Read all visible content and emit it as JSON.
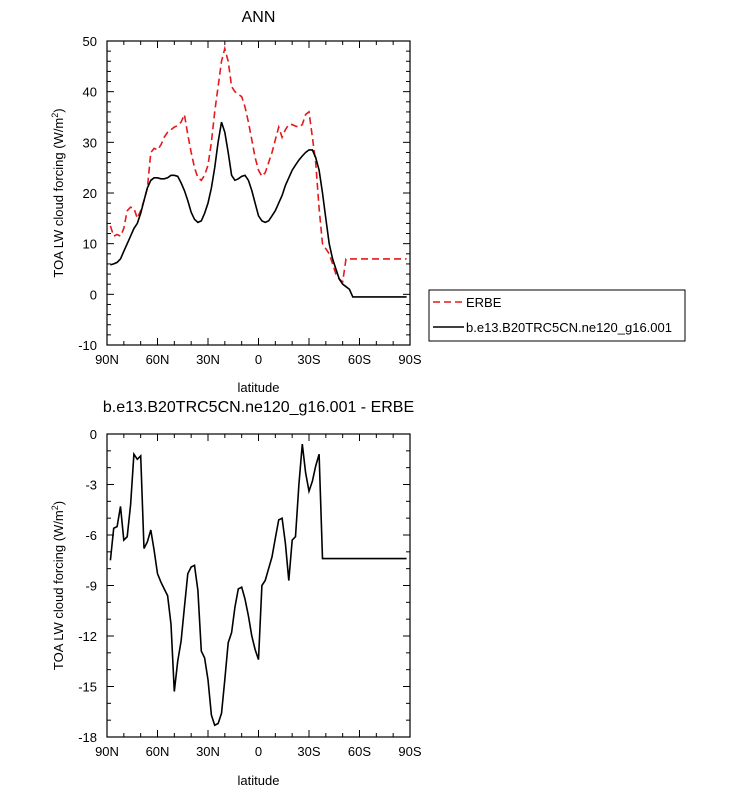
{
  "chart_data": [
    {
      "type": "line",
      "title": "ANN",
      "xlabel": "latitude",
      "ylabel_main": "TOA LW cloud forcing (W/m",
      "ylabel_sup": "2",
      "ylabel_tail": ")",
      "xlim": [
        90,
        -90
      ],
      "ylim": [
        -10,
        50
      ],
      "x_ticks": [
        90,
        60,
        30,
        0,
        -30,
        -60,
        -90
      ],
      "x_tick_labels": [
        "90N",
        "60N",
        "30N",
        "0",
        "30S",
        "60S",
        "90S"
      ],
      "y_ticks": [
        -10,
        0,
        10,
        20,
        30,
        40,
        50
      ],
      "y_tick_labels": [
        "-10",
        "0",
        "10",
        "20",
        "30",
        "40",
        "50"
      ],
      "legend": {
        "position": "right",
        "colors": [
          "#e41a1c",
          "#000000"
        ]
      },
      "series": [
        {
          "name": "ERBE",
          "color": "#e41a1c",
          "dash": "dashed",
          "x": [
            88,
            86,
            84,
            82,
            80,
            78,
            76,
            74,
            72,
            70,
            68,
            66,
            64,
            62,
            60,
            58,
            56,
            54,
            52,
            50,
            48,
            46,
            44,
            42,
            40,
            38,
            36,
            34,
            32,
            30,
            28,
            26,
            24,
            22,
            20,
            18,
            16,
            14,
            12,
            10,
            8,
            6,
            4,
            2,
            0,
            -2,
            -4,
            -6,
            -8,
            -10,
            -12,
            -14,
            -16,
            -18,
            -20,
            -22,
            -24,
            -26,
            -28,
            -30,
            -32,
            -34,
            -36,
            -38,
            -40,
            -42,
            -44,
            -46,
            -48,
            -50,
            -52,
            -54,
            -56,
            -58,
            -60,
            -62,
            -64,
            -66,
            -68,
            -70,
            -72,
            -74,
            -76,
            -78,
            -80,
            -82,
            -84,
            -86,
            -88
          ],
          "values": [
            13.5,
            11.5,
            11.8,
            11.5,
            13,
            16.5,
            17.2,
            17,
            15,
            16.5,
            18.5,
            21,
            28,
            28.8,
            28.5,
            29.5,
            31,
            32,
            32.5,
            33,
            33.3,
            34,
            35.5,
            31.5,
            28,
            25,
            23,
            22.5,
            23.5,
            25.5,
            30,
            36,
            41,
            46,
            48.5,
            46,
            41,
            40,
            39.5,
            39,
            37,
            34,
            30.5,
            27,
            24.5,
            23.3,
            24,
            26,
            28,
            30.5,
            33,
            31,
            32.5,
            33.5,
            33.5,
            33.2,
            33,
            33.5,
            35.5,
            36,
            31,
            26,
            17,
            10,
            9,
            8,
            6,
            4,
            3,
            2.5,
            7,
            7,
            7,
            7,
            7,
            7,
            7,
            7,
            7,
            7,
            7,
            7,
            7,
            7,
            7,
            7,
            7,
            7,
            7
          ]
        },
        {
          "name": "b.e13.B20TRC5CN.ne120_g16.001",
          "color": "#000000",
          "dash": "solid",
          "x": [
            88,
            86,
            84,
            82,
            80,
            78,
            76,
            74,
            72,
            70,
            68,
            66,
            64,
            62,
            60,
            58,
            56,
            54,
            52,
            50,
            48,
            46,
            44,
            42,
            40,
            38,
            36,
            34,
            32,
            30,
            28,
            26,
            24,
            22,
            20,
            18,
            16,
            14,
            12,
            10,
            8,
            6,
            4,
            2,
            0,
            -2,
            -4,
            -6,
            -8,
            -10,
            -12,
            -14,
            -16,
            -18,
            -20,
            -22,
            -24,
            -26,
            -28,
            -30,
            -32,
            -34,
            -36,
            -38,
            -40,
            -42,
            -44,
            -46,
            -48,
            -50,
            -52,
            -54,
            -56,
            -58,
            -60,
            -62,
            -64,
            -66,
            -68,
            -70,
            -72,
            -74,
            -76,
            -78,
            -80,
            -82,
            -84,
            -86,
            -88
          ],
          "values": [
            5.8,
            6,
            6.3,
            7,
            8.5,
            10,
            11.5,
            13,
            14,
            16,
            18.5,
            21,
            22.5,
            23,
            23,
            22.8,
            22.8,
            23,
            23.5,
            23.5,
            23.3,
            22,
            20.5,
            18.5,
            16.2,
            14.8,
            14.2,
            14.5,
            16,
            18,
            21,
            25,
            30,
            34,
            32,
            28,
            23.5,
            22.5,
            22.8,
            23.3,
            23.5,
            22.5,
            20.5,
            18,
            15.5,
            14.5,
            14.2,
            14.5,
            15.5,
            16.5,
            18,
            19.5,
            21.5,
            23,
            24.5,
            25.5,
            26.5,
            27.3,
            28,
            28.5,
            28.5,
            27,
            24.5,
            20,
            15,
            10,
            7,
            5,
            3,
            2,
            1.5,
            1,
            -0.5,
            -0.5,
            -0.5,
            -0.5,
            -0.5,
            -0.5,
            -0.5,
            -0.5,
            -0.5,
            -0.5,
            -0.5,
            -0.5,
            -0.5,
            -0.5,
            -0.5,
            -0.5,
            -0.5
          ]
        }
      ]
    },
    {
      "type": "line",
      "title": "b.e13.B20TRC5CN.ne120_g16.001 - ERBE",
      "xlabel": "latitude",
      "ylabel_main": "TOA LW cloud forcing (W/m",
      "ylabel_sup": "2",
      "ylabel_tail": ")",
      "xlim": [
        90,
        -90
      ],
      "ylim": [
        -18,
        0
      ],
      "x_ticks": [
        90,
        60,
        30,
        0,
        -30,
        -60,
        -90
      ],
      "x_tick_labels": [
        "90N",
        "60N",
        "30N",
        "0",
        "30S",
        "60S",
        "90S"
      ],
      "y_ticks": [
        -18,
        -15,
        -12,
        -9,
        -6,
        -3,
        0
      ],
      "y_tick_labels": [
        "-18",
        "-15",
        "-12",
        "-9",
        "-6",
        "-3",
        "0"
      ],
      "series": [
        {
          "color": "#000000",
          "dash": "solid",
          "x": [
            88,
            86,
            84,
            82,
            80,
            78,
            76,
            74,
            72,
            70,
            68,
            66,
            64,
            62,
            60,
            58,
            56,
            54,
            52,
            50,
            48,
            46,
            44,
            42,
            40,
            38,
            36,
            34,
            32,
            30,
            28,
            26,
            24,
            22,
            20,
            18,
            16,
            14,
            12,
            10,
            8,
            6,
            4,
            2,
            0,
            -2,
            -4,
            -6,
            -8,
            -10,
            -12,
            -14,
            -16,
            -18,
            -20,
            -22,
            -24,
            -26,
            -28,
            -30,
            -32,
            -34,
            -36,
            -38,
            -40,
            -42,
            -44,
            -46,
            -48,
            -50,
            -52,
            -54,
            -56,
            -58,
            -60,
            -62,
            -64,
            -66,
            -68,
            -70,
            -72,
            -74,
            -76,
            -78,
            -80,
            -82,
            -84,
            -86,
            -88
          ],
          "values": [
            -7.5,
            -5.6,
            -5.5,
            -4.3,
            -6.3,
            -6.1,
            -4.2,
            -1.2,
            -1.5,
            -1.3,
            -6.8,
            -6.4,
            -5.7,
            -6.9,
            -8.3,
            -8.8,
            -9.2,
            -9.6,
            -11.3,
            -15.3,
            -13.5,
            -12.3,
            -10.3,
            -8.3,
            -7.9,
            -7.8,
            -9.3,
            -12.9,
            -13.3,
            -14.6,
            -16.7,
            -17.3,
            -17.2,
            -16.6,
            -14.6,
            -12.4,
            -11.8,
            -10.3,
            -9.2,
            -9.1,
            -9.8,
            -10.8,
            -12.0,
            -12.8,
            -13.4,
            -9.0,
            -8.7,
            -8.0,
            -7.3,
            -6.2,
            -5.1,
            -5.0,
            -6.5,
            -8.7,
            -6.3,
            -6.1,
            -3.0,
            -0.6,
            -2.3,
            -3.4,
            -2.8,
            -1.9,
            -1.2,
            -7.4,
            -7.4,
            -7.4,
            -7.4,
            -7.4,
            -7.4,
            -7.4,
            -7.4,
            -7.4,
            -7.4,
            -7.4,
            -7.4,
            -7.4,
            -7.4,
            -7.4,
            -7.4,
            -7.4,
            -7.4,
            -7.4,
            -7.4,
            -7.4,
            -7.4,
            -7.4,
            -7.4,
            -7.4,
            -7.4
          ]
        }
      ]
    }
  ]
}
